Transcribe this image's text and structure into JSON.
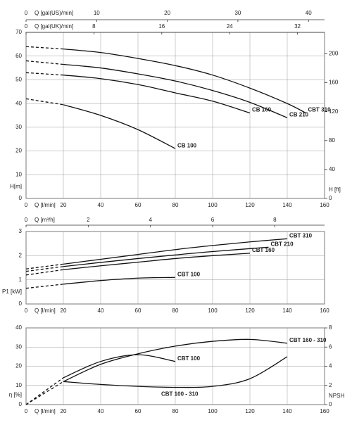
{
  "chart_data": [
    {
      "type": "line",
      "color": "#111111",
      "grid": true,
      "xlabel": "Q [l/min]",
      "xlim": [
        0,
        160
      ],
      "xticks": [
        0,
        20,
        40,
        60,
        80,
        100,
        120,
        140,
        160
      ],
      "x2label": "Q [gal(US)/min]",
      "x2lim": [
        0,
        42.27
      ],
      "x2ticks": [
        0,
        10,
        20,
        30,
        40
      ],
      "x3label": "Q [gal(UK)/min]",
      "x3lim": [
        0,
        35.19
      ],
      "x3ticks": [
        0,
        8,
        16,
        24,
        32
      ],
      "ylabel": "H[m]",
      "ylim": [
        0,
        70
      ],
      "yticks": [
        0,
        10,
        20,
        30,
        40,
        50,
        60,
        70
      ],
      "y2label": "H [ft]",
      "y2lim": [
        0,
        229.66
      ],
      "y2ticks": [
        0,
        40,
        80,
        120,
        160,
        200
      ],
      "series": [
        {
          "linestyle": "dashed",
          "x": [
            0,
            20
          ],
          "values": [
            64,
            63
          ]
        },
        {
          "name": "CBT 310",
          "x": [
            20,
            40,
            60,
            80,
            100,
            120,
            140,
            150
          ],
          "values": [
            63,
            61.5,
            59,
            56,
            52,
            46.5,
            40,
            36
          ]
        },
        {
          "linestyle": "dashed",
          "x": [
            0,
            20
          ],
          "values": [
            58,
            56.5
          ]
        },
        {
          "name": "CB 210",
          "x": [
            20,
            40,
            60,
            80,
            100,
            120,
            140
          ],
          "values": [
            56.5,
            55,
            52.5,
            49.5,
            45.5,
            40.5,
            34
          ]
        },
        {
          "linestyle": "dashed",
          "x": [
            0,
            20
          ],
          "values": [
            53,
            52
          ]
        },
        {
          "name": "CB 160",
          "x": [
            20,
            40,
            60,
            80,
            100,
            120
          ],
          "values": [
            52,
            50.5,
            48,
            44.5,
            41,
            36
          ]
        },
        {
          "linestyle": "dashed",
          "x": [
            0,
            20
          ],
          "values": [
            42,
            39.5
          ]
        },
        {
          "name": "CB 100",
          "x": [
            20,
            40,
            60,
            80
          ],
          "values": [
            39.5,
            35,
            29,
            21
          ]
        }
      ]
    },
    {
      "type": "line",
      "color": "#111111",
      "grid": true,
      "xlabel": "Q [l/min]",
      "xlim": [
        0,
        160
      ],
      "xticks": [
        0,
        20,
        40,
        60,
        80,
        100,
        120,
        140,
        160
      ],
      "x2label": "Q [m³/h]",
      "x2lim": [
        0,
        9.6
      ],
      "x2ticks": [
        0,
        2,
        4,
        6,
        8
      ],
      "ylabel": "P1 [kW]",
      "ylim": [
        0,
        3
      ],
      "yticks": [
        0,
        1,
        2,
        3
      ],
      "series": [
        {
          "linestyle": "dashed",
          "x": [
            0,
            20
          ],
          "values": [
            1.45,
            1.65
          ]
        },
        {
          "name": "CBT 310",
          "x": [
            20,
            40,
            60,
            80,
            100,
            120,
            140
          ],
          "values": [
            1.65,
            1.85,
            2.05,
            2.25,
            2.42,
            2.57,
            2.7
          ]
        },
        {
          "linestyle": "dashed",
          "x": [
            0,
            20
          ],
          "values": [
            1.35,
            1.55
          ]
        },
        {
          "name": "CBT 210",
          "x": [
            20,
            40,
            60,
            80,
            100,
            130
          ],
          "values": [
            1.55,
            1.72,
            1.88,
            2.03,
            2.17,
            2.35
          ]
        },
        {
          "linestyle": "dashed",
          "x": [
            0,
            20
          ],
          "values": [
            1.2,
            1.42
          ]
        },
        {
          "name": "CBT 160",
          "x": [
            20,
            40,
            60,
            80,
            100,
            120
          ],
          "values": [
            1.42,
            1.58,
            1.73,
            1.88,
            2.0,
            2.1
          ]
        },
        {
          "linestyle": "dashed",
          "x": [
            0,
            20
          ],
          "values": [
            0.65,
            0.82
          ]
        },
        {
          "name": "CBT 100",
          "x": [
            20,
            40,
            60,
            80
          ],
          "values": [
            0.82,
            0.97,
            1.07,
            1.1
          ]
        }
      ]
    },
    {
      "type": "line",
      "color": "#111111",
      "grid": true,
      "xlabel": "Q [l/min]",
      "xlim": [
        0,
        160
      ],
      "xticks": [
        0,
        20,
        40,
        60,
        80,
        100,
        120,
        140,
        160
      ],
      "ylabel": "η [%]",
      "ylim": [
        0,
        40
      ],
      "yticks": [
        0,
        10,
        20,
        30,
        40
      ],
      "y2label": "NPSH",
      "y2lim": [
        0,
        8
      ],
      "y2ticks": [
        0,
        2,
        4,
        6,
        8
      ],
      "series": [
        {
          "linestyle": "dashed",
          "x": [
            0,
            20
          ],
          "values": [
            0,
            12
          ]
        },
        {
          "name": "CBT 160 - 310",
          "x": [
            20,
            40,
            60,
            80,
            100,
            120,
            140
          ],
          "values": [
            12,
            21,
            26.5,
            30.5,
            33,
            34,
            32
          ]
        },
        {
          "linestyle": "dashed",
          "x": [
            0,
            20
          ],
          "values": [
            0,
            14
          ]
        },
        {
          "name": "CBT 100",
          "x": [
            20,
            40,
            60,
            80
          ],
          "values": [
            14,
            22.5,
            26,
            22.5
          ]
        },
        {
          "name": "CBT 100 - 310",
          "axis": "y2",
          "x": [
            20,
            40,
            60,
            80,
            100,
            120,
            140
          ],
          "values": [
            2.4,
            2.1,
            1.9,
            1.8,
            1.9,
            2.7,
            5
          ]
        }
      ]
    }
  ]
}
